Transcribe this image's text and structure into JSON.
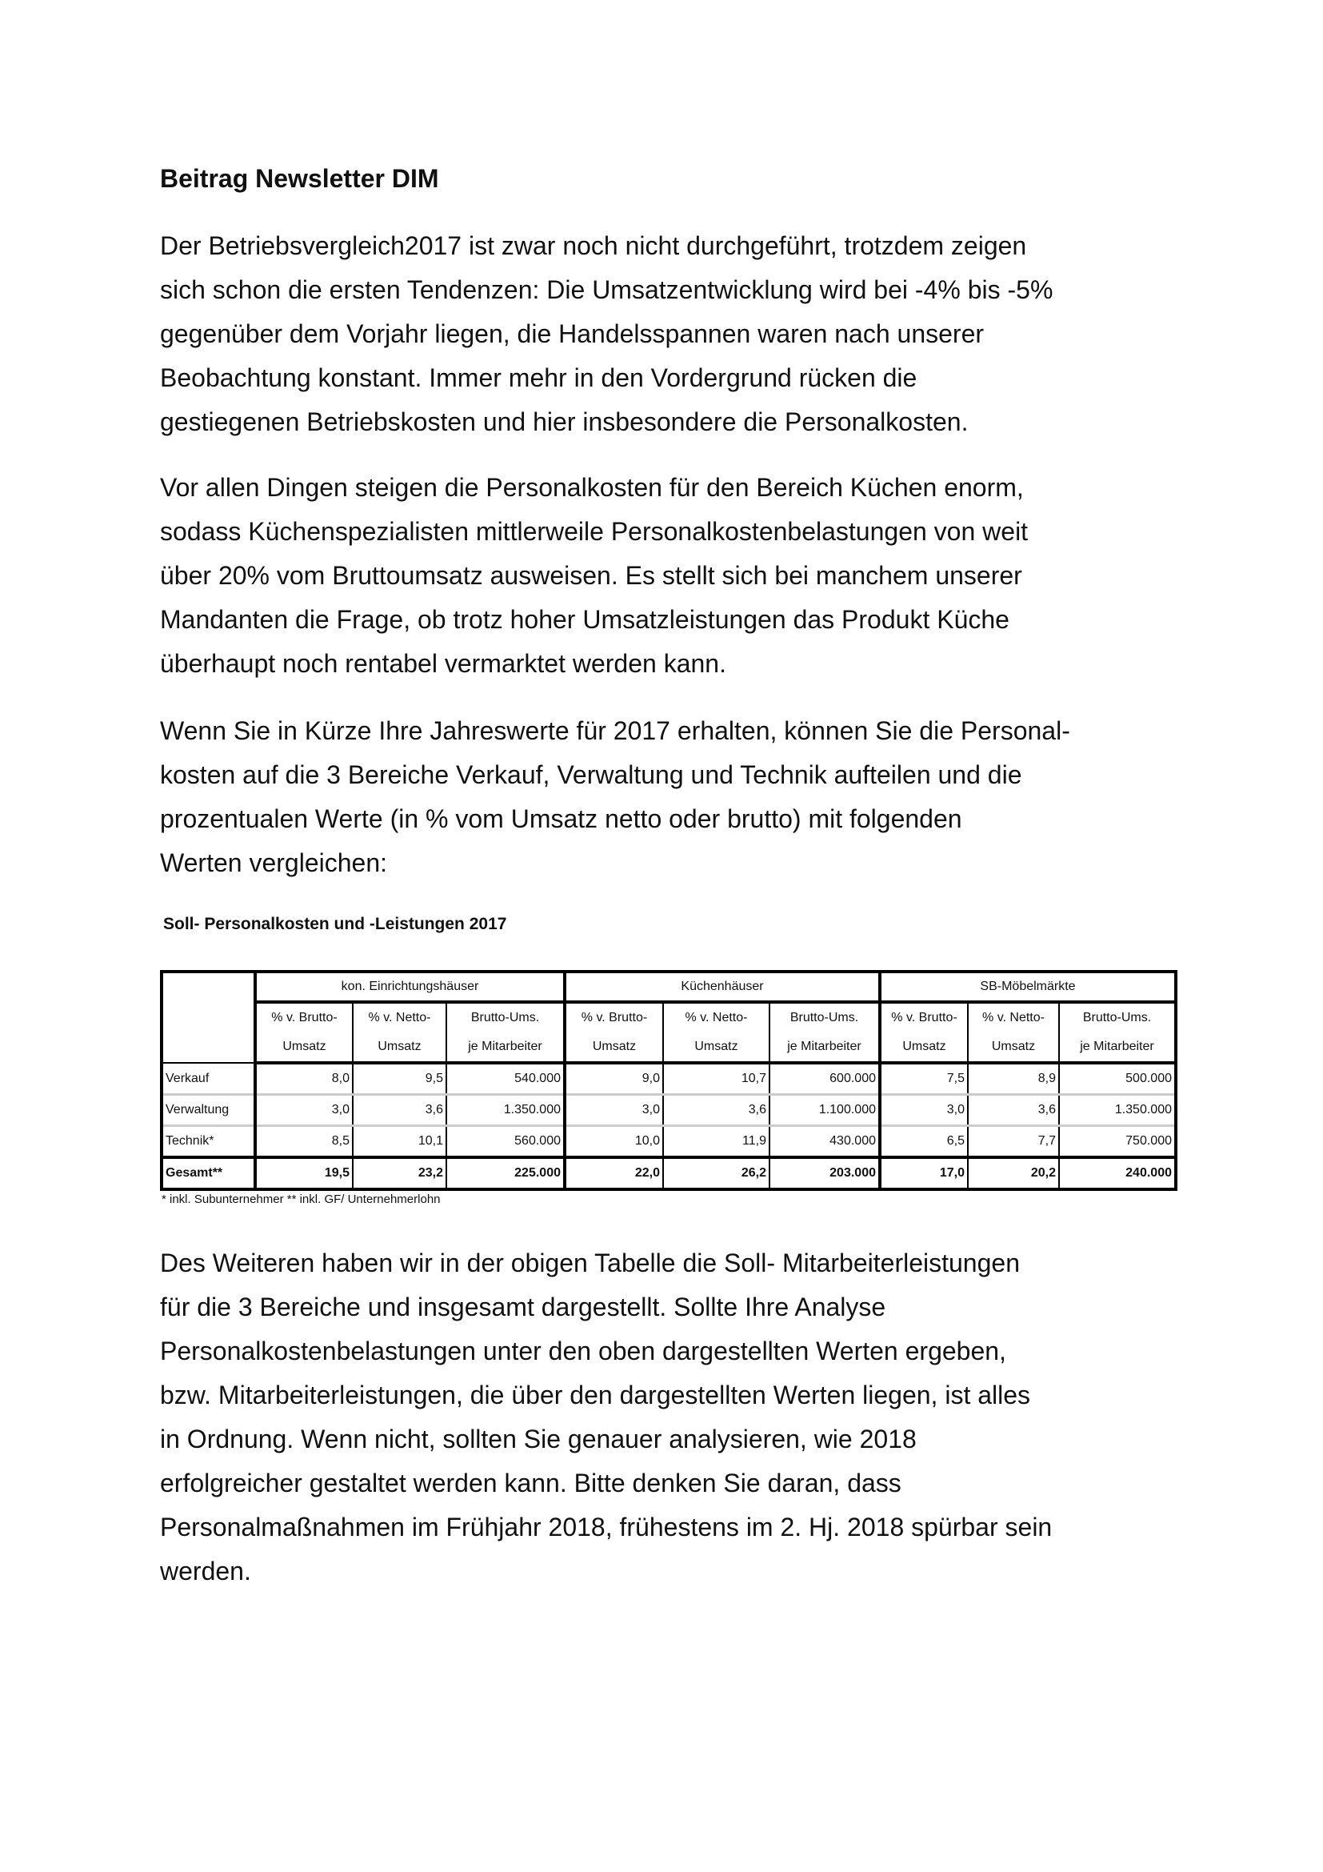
{
  "heading": "Beitrag Newsletter DIM",
  "paragraphs": [
    [
      "Der Betriebsvergleich2017 ist zwar noch nicht durchgeführt, trotzdem zeigen",
      "sich schon die ersten Tendenzen: Die Umsatzentwicklung wird bei -4% bis -5%",
      "gegenüber dem Vorjahr liegen, die Handelsspannen waren nach unserer",
      "Beobachtung konstant. Immer mehr in den Vordergrund rücken die",
      "gestiegenen Betriebskosten und hier insbesondere die Personalkosten."
    ],
    [
      "Vor allen Dingen steigen die Personalkosten für den Bereich Küchen enorm,",
      "sodass Küchenspezialisten mittlerweile Personalkostenbelastungen von weit",
      "über 20% vom Bruttoumsatz ausweisen. Es stellt sich bei manchem unserer",
      "Mandanten die Frage, ob trotz hoher Umsatzleistungen das Produkt Küche",
      "überhaupt noch rentabel vermarktet werden kann."
    ],
    [
      "Wenn Sie in Kürze Ihre Jahreswerte für 2017 erhalten, können Sie die Personal-",
      "kosten auf die 3 Bereiche Verkauf, Verwaltung und Technik aufteilen und die",
      "prozentualen Werte (in % vom Umsatz netto oder brutto) mit folgenden",
      "Werten vergleichen:"
    ],
    [
      "Des Weiteren haben wir in der obigen Tabelle die Soll- Mitarbeiterleistungen",
      "für die 3 Bereiche und insgesamt dargestellt. Sollte Ihre Analyse",
      "Personalkostenbelastungen unter den oben dargestellten Werten ergeben,",
      "bzw. Mitarbeiterleistungen, die über den dargestellten Werten liegen, ist alles",
      "in Ordnung. Wenn nicht, sollten Sie genauer analysieren, wie 2018",
      "erfolgreicher gestaltet werden kann. Bitte denken Sie daran, dass",
      "Personalmaßnahmen  im Frühjahr 2018, frühestens im 2. Hj. 2018 spürbar sein",
      "werden."
    ]
  ],
  "table": {
    "title": "Soll- Personalkosten und -Leistungen 2017",
    "groups": [
      "kon. Einrichtungshäuser",
      "Küchenhäuser",
      "SB-Möbelmärkte"
    ],
    "subheaders": [
      [
        "% v. Brutto-",
        "Umsatz"
      ],
      [
        "% v. Netto-",
        "Umsatz"
      ],
      [
        "Brutto-Ums.",
        "je Mitarbeiter"
      ]
    ],
    "rows": [
      {
        "label": "Verkauf",
        "values": [
          "8,0",
          "9,5",
          "540.000",
          "9,0",
          "10,7",
          "600.000",
          "7,5",
          "8,9",
          "500.000"
        ]
      },
      {
        "label": "Verwaltung",
        "values": [
          "3,0",
          "3,6",
          "1.350.000",
          "3,0",
          "3,6",
          "1.100.000",
          "3,0",
          "3,6",
          "1.350.000"
        ]
      },
      {
        "label": "Technik*",
        "values": [
          "8,5",
          "10,1",
          "560.000",
          "10,0",
          "11,9",
          "430.000",
          "6,5",
          "7,7",
          "750.000"
        ]
      },
      {
        "label": "Gesamt**",
        "values": [
          "19,5",
          "23,2",
          "225.000",
          "22,0",
          "26,2",
          "203.000",
          "17,0",
          "20,2",
          "240.000"
        ]
      }
    ],
    "footnote": "* inkl. Subunternehmer ** inkl. GF/ Unternehmerlohn"
  }
}
